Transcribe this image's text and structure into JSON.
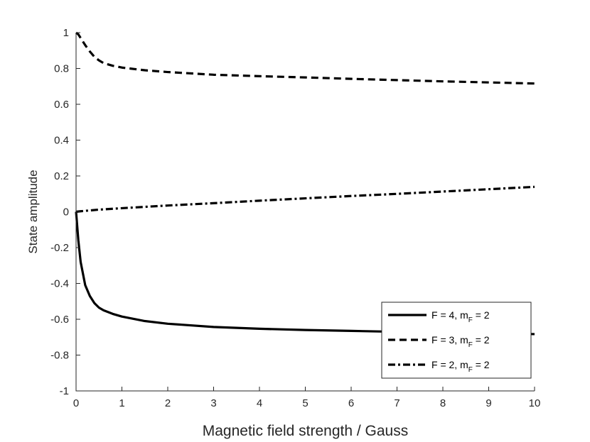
{
  "chart_data": {
    "type": "line",
    "xlabel": "Magnetic field strength / Gauss",
    "ylabel": "State amplitude",
    "xlim": [
      0,
      10
    ],
    "ylim": [
      -1,
      1
    ],
    "xticks": [
      0,
      1,
      2,
      3,
      4,
      5,
      6,
      7,
      8,
      9,
      10
    ],
    "xtick_labels": [
      "0",
      "1",
      "2",
      "3",
      "4",
      "5",
      "6",
      "7",
      "8",
      "9",
      "10"
    ],
    "yticks": [
      -1,
      -0.8,
      -0.6,
      -0.4,
      -0.2,
      0,
      0.2,
      0.4,
      0.6,
      0.8,
      1
    ],
    "ytick_labels": [
      "-1",
      "-0.8",
      "-0.6",
      "-0.4",
      "-0.2",
      "0",
      "0.2",
      "0.4",
      "0.6",
      "0.8",
      "1"
    ],
    "grid": false,
    "legend_position": "bottom-right",
    "series": [
      {
        "legend_main": "F = 4, m",
        "legend_sub": "F",
        "legend_tail": " = 2",
        "style": "solid",
        "color": "#000000",
        "x": [
          0,
          0.05,
          0.1,
          0.2,
          0.3,
          0.4,
          0.5,
          0.6,
          0.8,
          1,
          1.5,
          2,
          3,
          4,
          5,
          6,
          7,
          8,
          9,
          10
        ],
        "y": [
          0,
          -0.16,
          -0.28,
          -0.41,
          -0.47,
          -0.51,
          -0.535,
          -0.55,
          -0.57,
          -0.585,
          -0.61,
          -0.625,
          -0.643,
          -0.653,
          -0.66,
          -0.665,
          -0.67,
          -0.674,
          -0.678,
          -0.683
        ]
      },
      {
        "legend_main": "F = 3, m",
        "legend_sub": "F",
        "legend_tail": " = 2",
        "style": "dashed",
        "color": "#000000",
        "x": [
          0,
          0.05,
          0.1,
          0.2,
          0.3,
          0.4,
          0.5,
          0.6,
          0.8,
          1,
          1.5,
          2,
          3,
          4,
          5,
          6,
          7,
          8,
          9,
          10
        ],
        "y": [
          1,
          0.99,
          0.97,
          0.93,
          0.895,
          0.865,
          0.845,
          0.83,
          0.815,
          0.805,
          0.79,
          0.78,
          0.765,
          0.757,
          0.75,
          0.742,
          0.735,
          0.728,
          0.722,
          0.716
        ]
      },
      {
        "legend_main": "F = 2, m",
        "legend_sub": "F",
        "legend_tail": " = 2",
        "style": "dashdot",
        "color": "#000000",
        "x": [
          0,
          0.1,
          0.5,
          1,
          2,
          3,
          4,
          5,
          6,
          7,
          8,
          9,
          10
        ],
        "y": [
          0,
          0.003,
          0.012,
          0.02,
          0.035,
          0.048,
          0.062,
          0.075,
          0.088,
          0.1,
          0.113,
          0.126,
          0.139
        ]
      }
    ]
  }
}
